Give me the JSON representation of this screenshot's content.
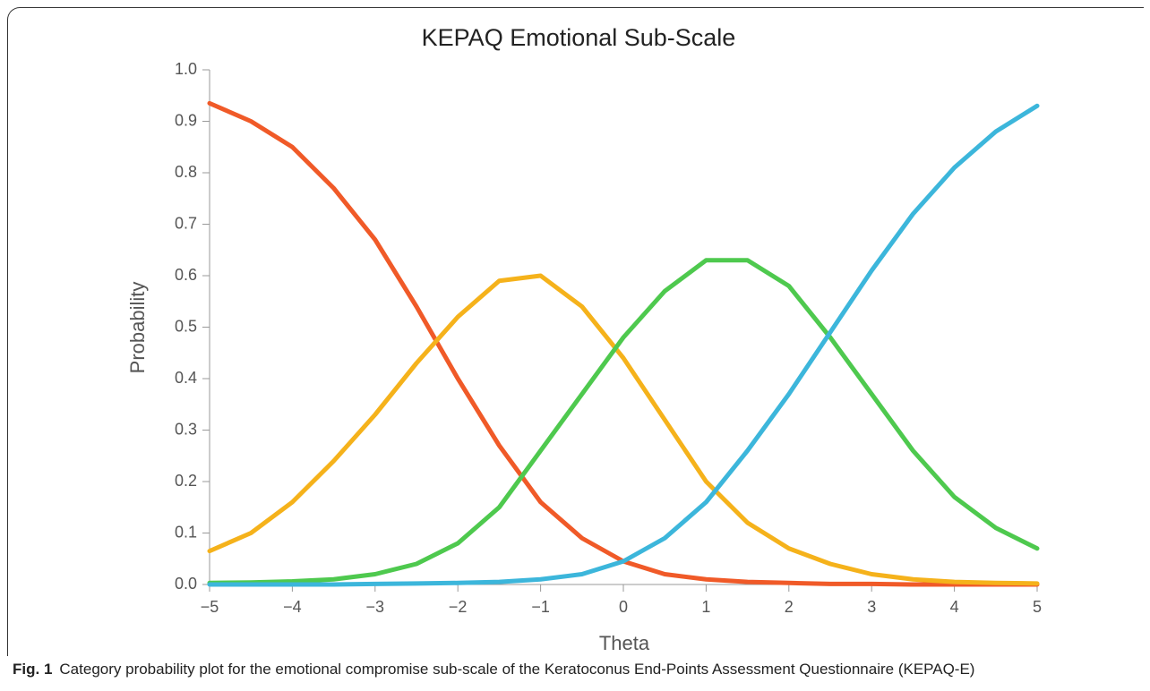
{
  "chart_data": {
    "type": "line",
    "title": "KEPAQ Emotional Sub-Scale",
    "xlabel": "Theta",
    "ylabel": "Probability",
    "x": [
      -5,
      -4.5,
      -4,
      -3.5,
      -3,
      -2.5,
      -2,
      -1.5,
      -1,
      -0.5,
      0,
      0.5,
      1,
      1.5,
      2,
      2.5,
      3,
      3.5,
      4,
      4.5,
      5
    ],
    "series": [
      {
        "name": null,
        "color": "#f05a28",
        "values": [
          0.935,
          0.9,
          0.85,
          0.77,
          0.67,
          0.54,
          0.4,
          0.27,
          0.16,
          0.09,
          0.045,
          0.02,
          0.01,
          0.005,
          0.003,
          0.001,
          0.001,
          0,
          0,
          0,
          0
        ]
      },
      {
        "name": null,
        "color": "#f5b21b",
        "values": [
          0.065,
          0.1,
          0.16,
          0.24,
          0.33,
          0.43,
          0.52,
          0.59,
          0.6,
          0.54,
          0.44,
          0.32,
          0.2,
          0.12,
          0.07,
          0.04,
          0.02,
          0.01,
          0.005,
          0.003,
          0.002
        ]
      },
      {
        "name": null,
        "color": "#4ec94e",
        "values": [
          0.003,
          0.004,
          0.006,
          0.01,
          0.02,
          0.04,
          0.08,
          0.15,
          0.26,
          0.37,
          0.48,
          0.57,
          0.63,
          0.63,
          0.58,
          0.48,
          0.37,
          0.26,
          0.17,
          0.11,
          0.07
        ]
      },
      {
        "name": null,
        "color": "#3cb6db",
        "values": [
          0,
          0,
          0,
          0,
          0.001,
          0.002,
          0.003,
          0.005,
          0.01,
          0.02,
          0.045,
          0.09,
          0.16,
          0.26,
          0.37,
          0.49,
          0.61,
          0.72,
          0.81,
          0.88,
          0.93
        ]
      }
    ],
    "xlim": [
      -5,
      5
    ],
    "xticks": [
      {
        "value": -5,
        "label": "−5"
      },
      {
        "value": -4,
        "label": "−4"
      },
      {
        "value": -3,
        "label": "−3"
      },
      {
        "value": -2,
        "label": "−2"
      },
      {
        "value": -1,
        "label": "−1"
      },
      0,
      1,
      2,
      3,
      4,
      5
    ],
    "ylim": [
      0,
      1
    ],
    "yticks": [
      {
        "value": 0,
        "label": "0.0"
      },
      0.1,
      0.2,
      0.3,
      0.4,
      0.5,
      0.6,
      0.7,
      0.8,
      0.9,
      {
        "value": 1,
        "label": "1.0"
      }
    ],
    "grid": false
  },
  "caption": {
    "label": "Fig. 1",
    "text": "Category probability plot for the emotional compromise sub-scale of the Keratoconus End-Points Assessment Questionnaire (KEPAQ-E)"
  }
}
